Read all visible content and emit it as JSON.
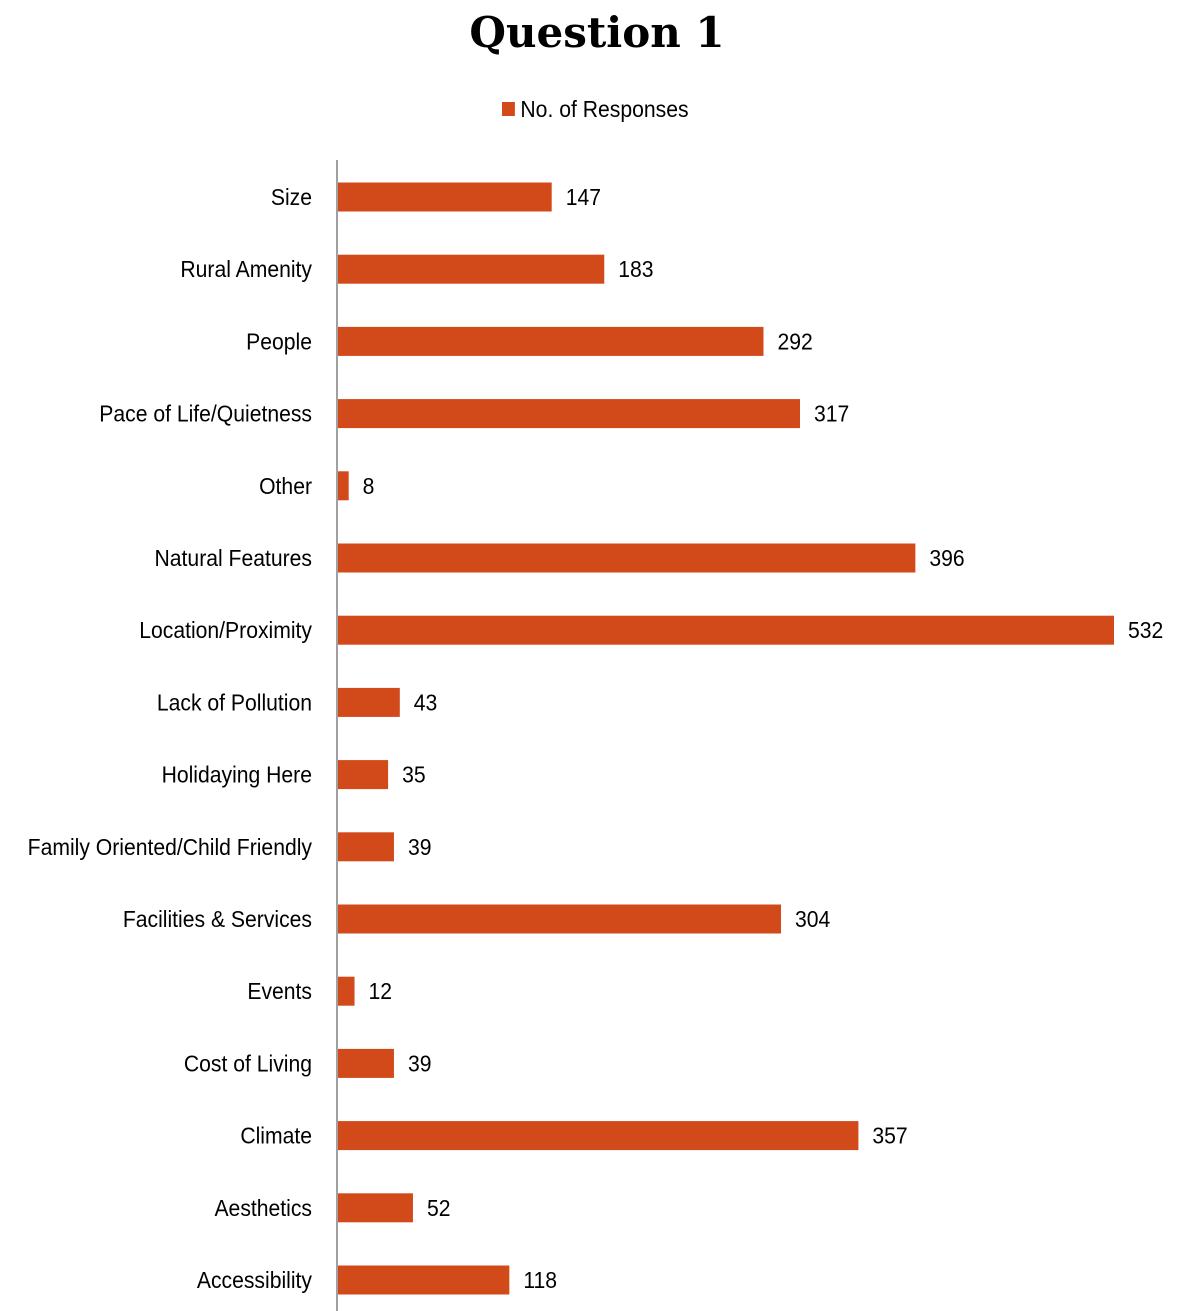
{
  "chart_data": {
    "type": "bar",
    "orientation": "horizontal",
    "title": "Question 1",
    "xlabel": "",
    "ylabel": "",
    "legend_position": "top",
    "grid": false,
    "xlim": [
      0,
      532
    ],
    "categories": [
      "Size",
      "Rural Amenity",
      "People",
      "Pace of Life/Quietness",
      "Other",
      "Natural Features",
      "Location/Proximity",
      "Lack of Pollution",
      "Holidaying Here",
      "Family Oriented/Child Friendly",
      "Facilities & Services",
      "Events",
      "Cost of Living",
      "Climate",
      "Aesthetics",
      "Accessibility"
    ],
    "series": [
      {
        "name": "No. of Responses",
        "color": "#d2491a",
        "values": [
          147,
          183,
          292,
          317,
          8,
          396,
          532,
          43,
          35,
          39,
          304,
          12,
          39,
          357,
          52,
          118
        ]
      }
    ]
  }
}
